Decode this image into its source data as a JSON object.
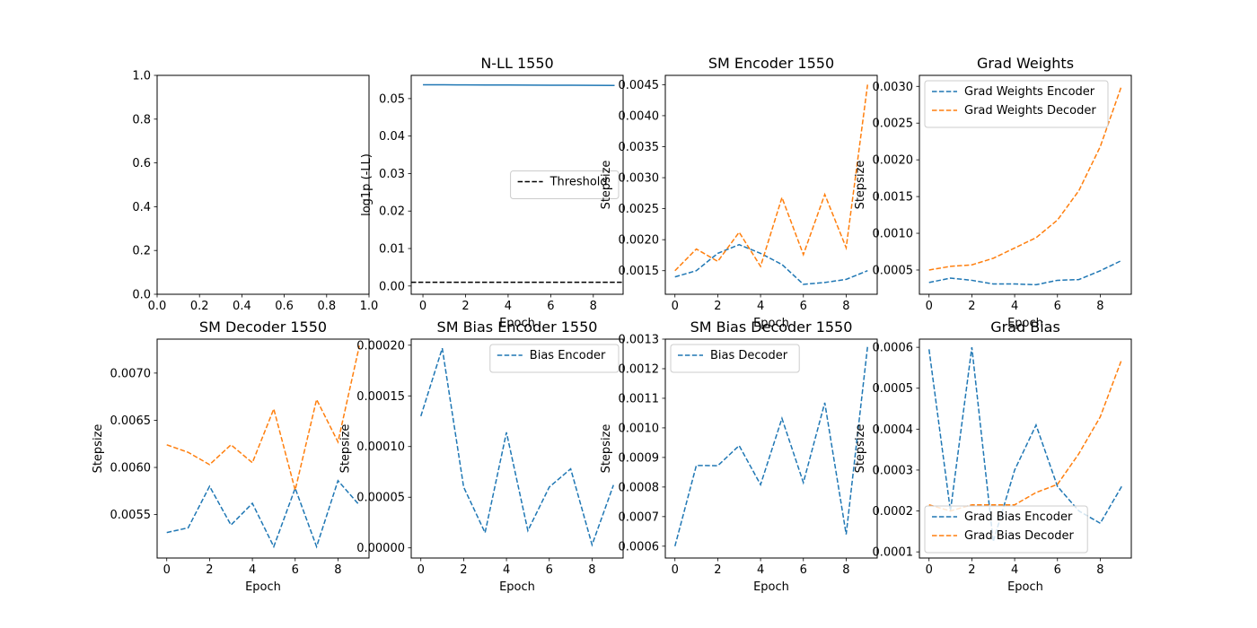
{
  "colors": {
    "blue": "#1f77b4",
    "orange": "#ff7f0e",
    "black": "#000000",
    "legend_border": "#cccccc"
  },
  "chart_data": [
    {
      "id": "empty-panel",
      "type": "line",
      "title": "",
      "xlabel": "",
      "ylabel": "",
      "xlim": [
        0,
        1
      ],
      "ylim": [
        0,
        1
      ],
      "xticks": [
        0,
        0.2,
        0.4,
        0.6,
        0.8,
        1
      ],
      "xtick_labels": [
        "0.0",
        "0.2",
        "0.4",
        "0.6",
        "0.8",
        "1.0"
      ],
      "yticks": [
        0,
        0.2,
        0.4,
        0.6,
        0.8,
        1
      ],
      "ytick_labels": [
        "0.0",
        "0.2",
        "0.4",
        "0.6",
        "0.8",
        "1.0"
      ],
      "series": []
    },
    {
      "id": "nll",
      "type": "line",
      "title": "N-LL 1550",
      "xlabel": "Epoch",
      "ylabel": "log1p (-LL)",
      "xlim": [
        -0.55,
        9.4
      ],
      "ylim": [
        -0.0022,
        0.0562
      ],
      "xticks": [
        0,
        2,
        4,
        6,
        8
      ],
      "xtick_labels": [
        "0",
        "2",
        "4",
        "6",
        "8"
      ],
      "yticks": [
        0,
        0.01,
        0.02,
        0.03,
        0.04,
        0.05
      ],
      "ytick_labels": [
        "0.00",
        "0.01",
        "0.02",
        "0.03",
        "0.04",
        "0.05"
      ],
      "legend_position": "center-right",
      "series": [
        {
          "name": "",
          "color": "blue",
          "dash": "solid",
          "x": [
            0,
            1,
            2,
            3,
            4,
            5,
            6,
            7,
            8,
            9
          ],
          "values": [
            0.0537,
            0.05368,
            0.05366,
            0.05364,
            0.05362,
            0.0536,
            0.05358,
            0.05356,
            0.05354,
            0.05352
          ]
        },
        {
          "name": "Threshold",
          "color": "black",
          "dash": "dashed",
          "hline": 0.001
        }
      ]
    },
    {
      "id": "sm-encoder",
      "type": "line",
      "title": "SM Encoder 1550",
      "xlabel": "Epoch",
      "ylabel": "Stepsize",
      "xlim": [
        -0.45,
        9.45
      ],
      "ylim": [
        0.00112,
        0.00465
      ],
      "xticks": [
        0,
        2,
        4,
        6,
        8
      ],
      "xtick_labels": [
        "0",
        "2",
        "4",
        "6",
        "8"
      ],
      "yticks": [
        0.0015,
        0.002,
        0.0025,
        0.003,
        0.0035,
        0.004,
        0.0045
      ],
      "ytick_labels": [
        "0.0015",
        "0.0020",
        "0.0025",
        "0.0030",
        "0.0035",
        "0.0040",
        "0.0045"
      ],
      "series": [
        {
          "name": "",
          "color": "blue",
          "dash": "dashed",
          "x": [
            0,
            1,
            2,
            3,
            4,
            5,
            6,
            7,
            8,
            9
          ],
          "values": [
            0.0014,
            0.0015,
            0.00178,
            0.00192,
            0.00178,
            0.0016,
            0.00128,
            0.00131,
            0.00136,
            0.0015
          ]
        },
        {
          "name": "",
          "color": "orange",
          "dash": "dashed",
          "x": [
            0,
            1,
            2,
            3,
            4,
            5,
            6,
            7,
            8,
            9
          ],
          "values": [
            0.0015,
            0.00185,
            0.00165,
            0.00212,
            0.00157,
            0.00268,
            0.00176,
            0.00273,
            0.00187,
            0.0045
          ]
        }
      ]
    },
    {
      "id": "grad-weights",
      "type": "line",
      "title": "Grad Weights",
      "xlabel": "Epoch",
      "ylabel": "Stepsize",
      "xlim": [
        -0.45,
        9.45
      ],
      "ylim": [
        0.00017,
        0.00315
      ],
      "xticks": [
        0,
        2,
        4,
        6,
        8
      ],
      "xtick_labels": [
        "0",
        "2",
        "4",
        "6",
        "8"
      ],
      "yticks": [
        0.0005,
        0.001,
        0.0015,
        0.002,
        0.0025,
        0.003
      ],
      "ytick_labels": [
        "0.0005",
        "0.0010",
        "0.0015",
        "0.0020",
        "0.0025",
        "0.0030"
      ],
      "legend_position": "upper-left",
      "series": [
        {
          "name": "Grad Weights Encoder",
          "color": "blue",
          "dash": "dashed",
          "x": [
            0,
            1,
            2,
            3,
            4,
            5,
            6,
            7,
            8,
            9
          ],
          "values": [
            0.00033,
            0.00039,
            0.00036,
            0.00031,
            0.00031,
            0.0003,
            0.00036,
            0.00037,
            0.00049,
            0.00063
          ]
        },
        {
          "name": "Grad Weights Decoder",
          "color": "orange",
          "dash": "dashed",
          "x": [
            0,
            1,
            2,
            3,
            4,
            5,
            6,
            7,
            8,
            9
          ],
          "values": [
            0.0005,
            0.00055,
            0.00057,
            0.00066,
            0.0008,
            0.00094,
            0.00118,
            0.00158,
            0.00218,
            0.00301
          ]
        }
      ]
    },
    {
      "id": "sm-decoder",
      "type": "line",
      "title": "SM Decoder 1550",
      "xlabel": "Epoch",
      "ylabel": "Stepsize",
      "xlim": [
        -0.45,
        9.45
      ],
      "ylim": [
        0.00504,
        0.00736
      ],
      "xticks": [
        0,
        2,
        4,
        6,
        8
      ],
      "xtick_labels": [
        "0",
        "2",
        "4",
        "6",
        "8"
      ],
      "yticks": [
        0.0055,
        0.006,
        0.0065,
        0.007
      ],
      "ytick_labels": [
        "0.0055",
        "0.0060",
        "0.0065",
        "0.0070"
      ],
      "series": [
        {
          "name": "",
          "color": "blue",
          "dash": "dashed",
          "x": [
            0,
            1,
            2,
            3,
            4,
            5,
            6,
            7,
            8,
            9
          ],
          "values": [
            0.00531,
            0.00536,
            0.0058,
            0.00539,
            0.00562,
            0.00516,
            0.00578,
            0.00516,
            0.00586,
            0.0056
          ]
        },
        {
          "name": "",
          "color": "orange",
          "dash": "dashed",
          "x": [
            0,
            1,
            2,
            3,
            4,
            5,
            6,
            7,
            8,
            9
          ],
          "values": [
            0.00624,
            0.00616,
            0.00603,
            0.00624,
            0.00605,
            0.00662,
            0.00576,
            0.00672,
            0.00627,
            0.00729
          ]
        }
      ]
    },
    {
      "id": "sm-bias-encoder",
      "type": "line",
      "title": "SM Bias Encoder 1550",
      "xlabel": "Epoch",
      "ylabel": "Stepsize",
      "xlim": [
        -0.45,
        9.45
      ],
      "ylim": [
        -1e-05,
        0.000206
      ],
      "xticks": [
        0,
        2,
        4,
        6,
        8
      ],
      "xtick_labels": [
        "0",
        "2",
        "4",
        "6",
        "8"
      ],
      "yticks": [
        0,
        5e-05,
        0.0001,
        0.00015,
        0.0002
      ],
      "ytick_labels": [
        "0.00000",
        "0.00005",
        "0.00010",
        "0.00015",
        "0.00020"
      ],
      "legend_position": "upper-right",
      "series": [
        {
          "name": "Bias Encoder",
          "color": "blue",
          "dash": "dashed",
          "x": [
            0,
            1,
            2,
            3,
            4,
            5,
            6,
            7,
            8,
            9
          ],
          "values": [
            0.00013,
            0.000197,
            6e-05,
            1.5e-05,
            0.000114,
            1.7e-05,
            6e-05,
            7.8e-05,
            3e-06,
            6.2e-05
          ]
        }
      ]
    },
    {
      "id": "sm-bias-decoder",
      "type": "line",
      "title": "SM Bias Decoder 1550",
      "xlabel": "Epoch",
      "ylabel": "Stepsize",
      "xlim": [
        -0.45,
        9.45
      ],
      "ylim": [
        0.00056,
        0.0013
      ],
      "xticks": [
        0,
        2,
        4,
        6,
        8
      ],
      "xtick_labels": [
        "0",
        "2",
        "4",
        "6",
        "8"
      ],
      "yticks": [
        0.0006,
        0.0007,
        0.0008,
        0.0009,
        0.001,
        0.0011,
        0.0012,
        0.0013
      ],
      "ytick_labels": [
        "0.0006",
        "0.0007",
        "0.0008",
        "0.0009",
        "0.0010",
        "0.0011",
        "0.0012",
        "0.0013"
      ],
      "legend_position": "upper-left",
      "series": [
        {
          "name": "Bias Decoder",
          "color": "blue",
          "dash": "dashed",
          "x": [
            0,
            1,
            2,
            3,
            4,
            5,
            6,
            7,
            8,
            9
          ],
          "values": [
            0.0006,
            0.000873,
            0.000872,
            0.00094,
            0.000808,
            0.001032,
            0.000815,
            0.001085,
            0.00064,
            0.001275
          ]
        }
      ]
    },
    {
      "id": "grad-bias",
      "type": "line",
      "title": "Grad Bias",
      "xlabel": "Epoch",
      "ylabel": "Stepsize",
      "xlim": [
        -0.45,
        9.45
      ],
      "ylim": [
        8.5e-05,
        0.00062
      ],
      "xticks": [
        0,
        2,
        4,
        6,
        8
      ],
      "xtick_labels": [
        "0",
        "2",
        "4",
        "6",
        "8"
      ],
      "yticks": [
        0.0001,
        0.0002,
        0.0003,
        0.0004,
        0.0005,
        0.0006
      ],
      "ytick_labels": [
        "0.0001",
        "0.0002",
        "0.0003",
        "0.0004",
        "0.0005",
        "0.0006"
      ],
      "legend_position": "lower-left",
      "series": [
        {
          "name": "Grad Bias Encoder",
          "color": "blue",
          "dash": "dashed",
          "x": [
            0,
            1,
            2,
            3,
            4,
            5,
            6,
            7,
            8,
            9
          ],
          "values": [
            0.000595,
            0.0002,
            0.0006,
            0.000125,
            0.0003,
            0.00041,
            0.00026,
            0.0002,
            0.00017,
            0.00026
          ]
        },
        {
          "name": "Grad Bias Decoder",
          "color": "orange",
          "dash": "dashed",
          "x": [
            0,
            1,
            2,
            3,
            4,
            5,
            6,
            7,
            8,
            9
          ],
          "values": [
            0.000215,
            0.0002,
            0.000215,
            0.000215,
            0.000215,
            0.000245,
            0.000265,
            0.00034,
            0.00043,
            0.00057
          ]
        }
      ]
    }
  ]
}
